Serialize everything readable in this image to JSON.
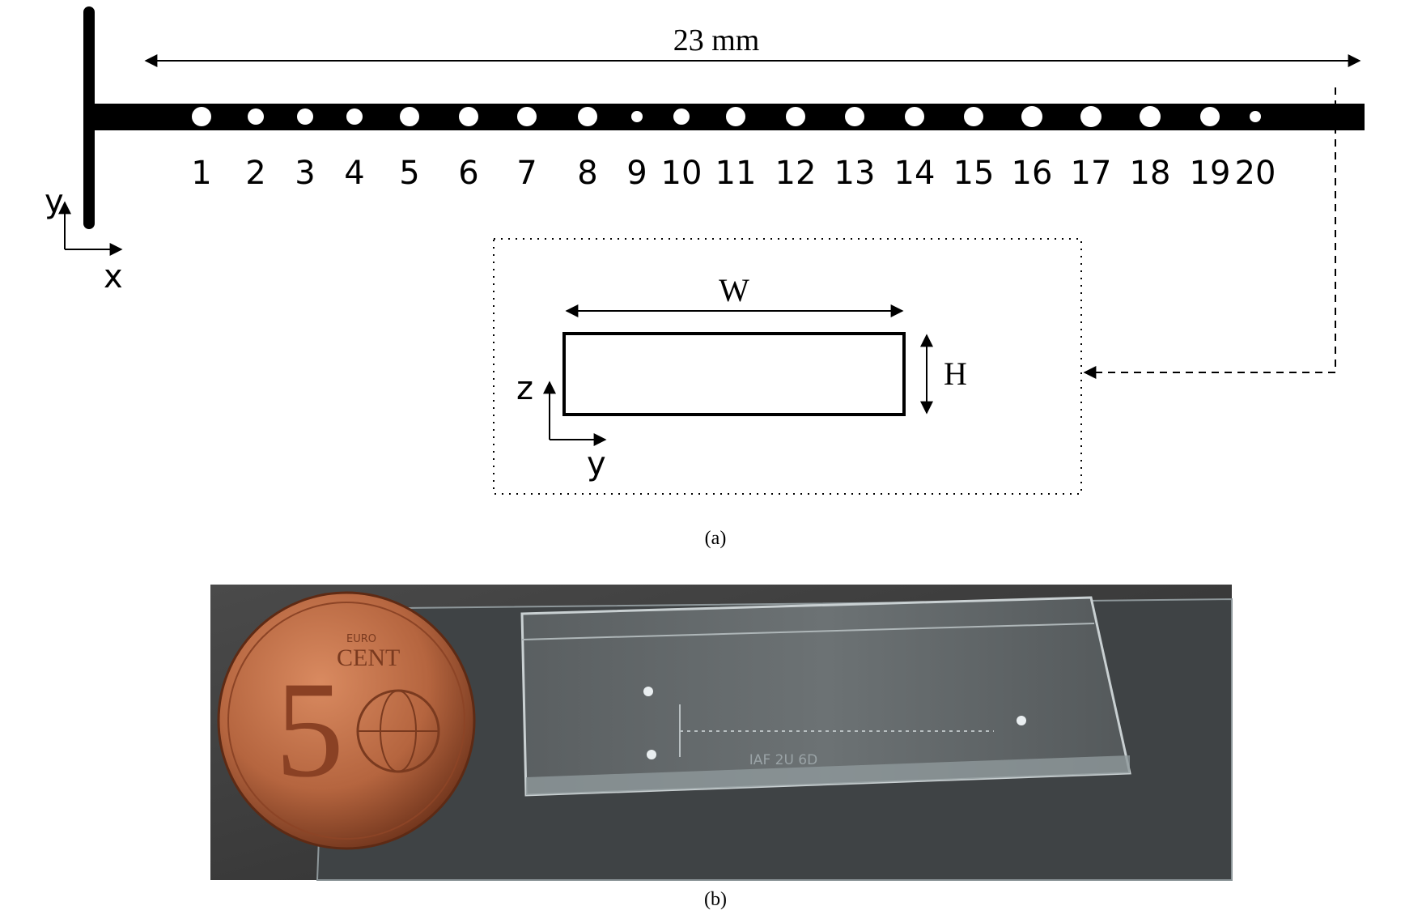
{
  "diagram": {
    "length_label": "23 mm",
    "axes_top": {
      "vertical": "y",
      "horizontal": "x"
    },
    "constriction_numbers": [
      "1",
      "2",
      "3",
      "4",
      "5",
      "6",
      "7",
      "8",
      "9",
      "10",
      "11",
      "12",
      "13",
      "14",
      "15",
      "16",
      "17",
      "18",
      "19",
      "20"
    ],
    "cross_section": {
      "width_label": "W",
      "height_label": "H",
      "axes": {
        "vertical": "z",
        "horizontal": "y"
      }
    }
  },
  "captions": {
    "a": "(a)",
    "b": "(b)"
  },
  "photo": {
    "coin_numeral": "5",
    "coin_text_top": "EURO",
    "coin_text": "CENT",
    "chip_engraving": "IAF 2U 6D"
  },
  "colors": {
    "ink": "#000000",
    "photo_bg": "#3b3b3b",
    "coin": "#b5653f",
    "coin_dark": "#7a3a1f",
    "glass": "#9aa4a8"
  }
}
